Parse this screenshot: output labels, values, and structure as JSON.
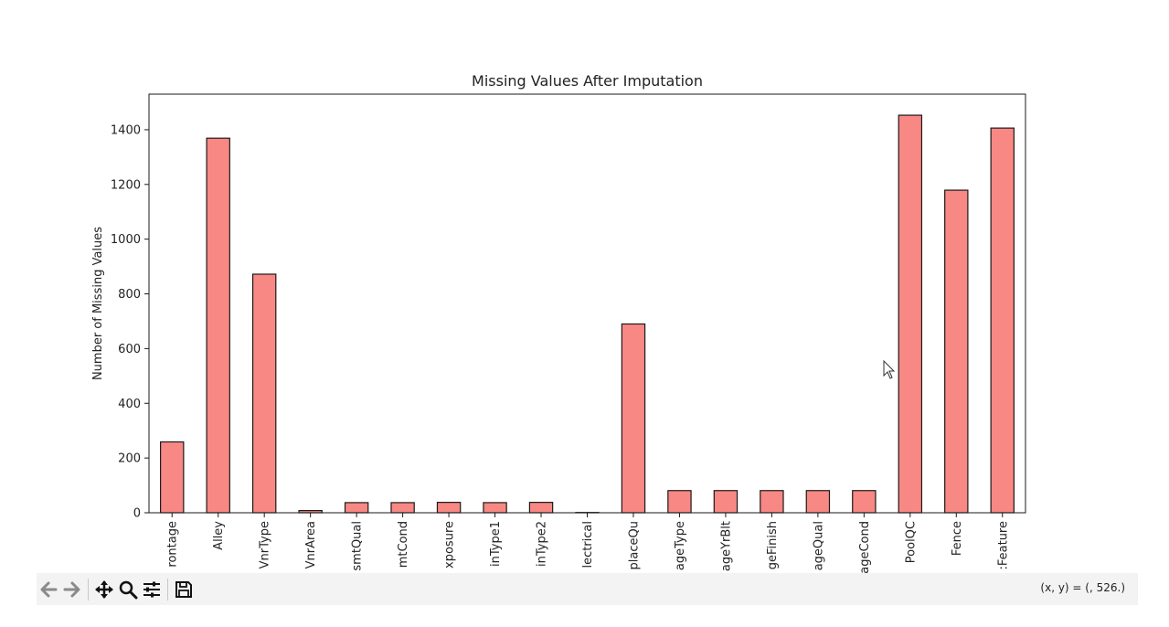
{
  "chart_data": {
    "type": "bar",
    "title": "Missing Values After Imputation",
    "xlabel": "",
    "ylabel": "Number of Missing Values",
    "ylim": [
      0,
      1530
    ],
    "yticks": [
      0,
      200,
      400,
      600,
      800,
      1000,
      1200,
      1400
    ],
    "categories": [
      "rontage",
      "Alley",
      "VnrType",
      "VnrArea",
      "smtQual",
      "mtCond",
      "xposure",
      "inType1",
      "inType2",
      "lectrical",
      "placeQu",
      "ageType",
      "ageYrBlt",
      "geFinish",
      "ageQual",
      "ageCond",
      "PoolQC",
      "Fence",
      ":Feature"
    ],
    "values": [
      259,
      1369,
      872,
      8,
      37,
      37,
      38,
      37,
      38,
      1,
      690,
      81,
      81,
      81,
      81,
      81,
      1453,
      1179,
      1406
    ],
    "bar_color": "#f88884",
    "edge_color": "#1a1a1a",
    "grid": false
  },
  "toolbar": {
    "buttons": [
      {
        "name": "back-icon",
        "label": "Back"
      },
      {
        "name": "forward-icon",
        "label": "Forward"
      },
      {
        "name": "pan-icon",
        "label": "Pan"
      },
      {
        "name": "zoom-icon",
        "label": "Zoom"
      },
      {
        "name": "configure-subplots-icon",
        "label": "Configure subplots"
      },
      {
        "name": "save-icon",
        "label": "Save"
      }
    ],
    "coord_readout": "(x, y) = (, 526.)"
  }
}
